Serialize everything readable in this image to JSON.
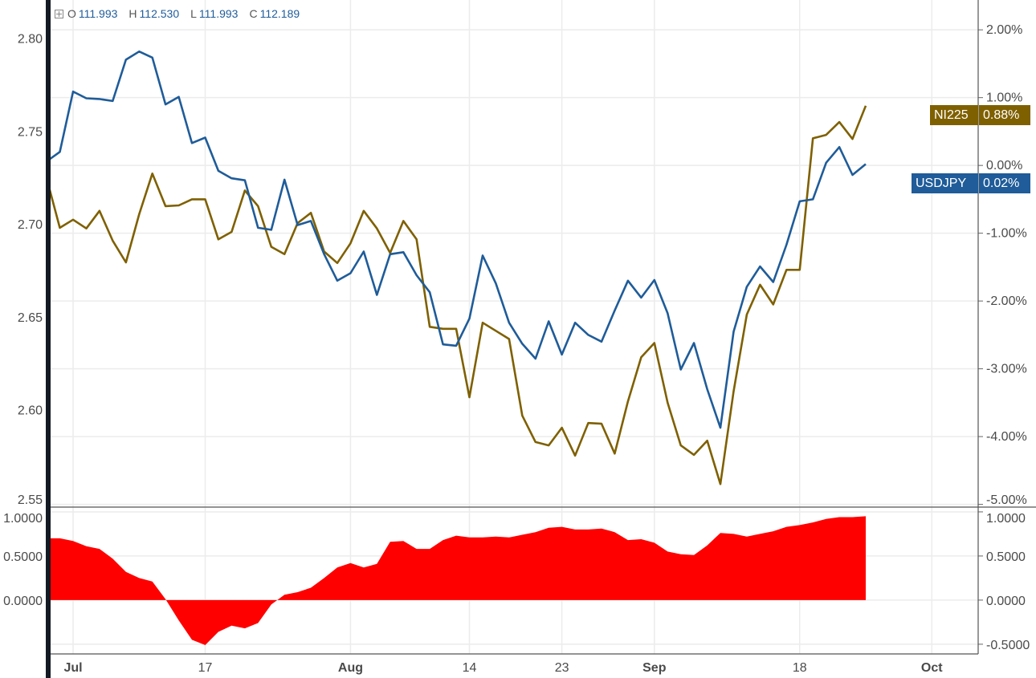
{
  "legend": {
    "open_label": "O",
    "open": "111.993",
    "high_label": "H",
    "high": "112.530",
    "low_label": "L",
    "low": "111.993",
    "close_label": "C",
    "close": "112.189",
    "expand_icon": "plus-square-icon"
  },
  "colors": {
    "usdjpy": "#1f5c99",
    "ni225": "#7f6000",
    "correlation": "#ff0000",
    "grid": "#ececec",
    "axis_text": "#4a4a4a"
  },
  "chart_data": [
    {
      "type": "line",
      "title": "",
      "x": [
        "Jun 29",
        "Jun 30",
        "Jul 3",
        "Jul 4",
        "Jul 5",
        "Jul 6",
        "Jul 7",
        "Jul 10",
        "Jul 11",
        "Jul 12",
        "Jul 13",
        "Jul 14",
        "Jul 17",
        "Jul 18",
        "Jul 19",
        "Jul 20",
        "Jul 21",
        "Jul 24",
        "Jul 25",
        "Jul 26",
        "Jul 27",
        "Jul 28",
        "Jul 31",
        "Aug 1",
        "Aug 2",
        "Aug 3",
        "Aug 4",
        "Aug 7",
        "Aug 8",
        "Aug 9",
        "Aug 10",
        "Aug 11",
        "Aug 14",
        "Aug 15",
        "Aug 16",
        "Aug 17",
        "Aug 18",
        "Aug 21",
        "Aug 22",
        "Aug 23",
        "Aug 24",
        "Aug 25",
        "Aug 28",
        "Aug 29",
        "Aug 30",
        "Aug 31",
        "Sep 1",
        "Sep 4",
        "Sep 5",
        "Sep 6",
        "Sep 7",
        "Sep 8",
        "Sep 11",
        "Sep 12",
        "Sep 13",
        "Sep 14",
        "Sep 15",
        "Sep 18",
        "Sep 19",
        "Sep 20",
        "Sep 21",
        "Sep 22",
        "Sep 25"
      ],
      "x_ticks": [
        "Jul",
        "17",
        "Aug",
        "14",
        "23",
        "Sep",
        "18",
        "Oct"
      ],
      "x_tick_dates": [
        "Jul 3",
        "Jul 17",
        "Aug 1",
        "Aug 14",
        "Aug 23",
        "Sep 1",
        "Sep 18",
        "Oct 2"
      ],
      "left_axis": {
        "ticks": [
          "2.80",
          "2.75",
          "2.70",
          "2.65",
          "2.60",
          "2.55"
        ],
        "values": [
          2.8,
          2.75,
          2.7,
          2.65,
          2.6,
          2.55
        ],
        "ylim": [
          2.548,
          2.821
        ]
      },
      "right_axis": {
        "ticks": [
          "2.00%",
          "1.00%",
          "0.00%",
          "-1.00%",
          "-2.00%",
          "-3.00%",
          "-4.00%",
          "-5.00%"
        ],
        "values": [
          2,
          1,
          0,
          -1,
          -2,
          -3,
          -4,
          -5
        ],
        "ylim": [
          -5.04,
          2.44
        ],
        "unit": "%"
      },
      "grid": true,
      "series": [
        {
          "name": "USDJPY",
          "last_label": "0.02%",
          "values": [
            0.06,
            0.2,
            1.09,
            0.99,
            0.98,
            0.95,
            1.56,
            1.68,
            1.59,
            0.9,
            1.01,
            0.33,
            0.41,
            -0.08,
            -0.19,
            -0.22,
            -0.92,
            -0.95,
            -0.21,
            -0.88,
            -0.82,
            -1.31,
            -1.7,
            -1.59,
            -1.27,
            -1.91,
            -1.31,
            -1.28,
            -1.62,
            -1.87,
            -2.64,
            -2.66,
            -2.26,
            -1.33,
            -1.74,
            -2.32,
            -2.63,
            -2.85,
            -2.3,
            -2.79,
            -2.32,
            -2.5,
            -2.6,
            -2.14,
            -1.7,
            -1.95,
            -1.69,
            -2.18,
            -3.01,
            -2.62,
            -3.3,
            -3.87,
            -2.45,
            -1.79,
            -1.49,
            -1.72,
            -1.17,
            -0.53,
            -0.5,
            0.04,
            0.27,
            -0.14,
            0.02
          ]
        },
        {
          "name": "NI225",
          "last_label": "0.88%",
          "values": [
            -0.19,
            -0.92,
            -0.8,
            -0.93,
            -0.67,
            -1.11,
            -1.43,
            -0.72,
            -0.12,
            -0.6,
            -0.59,
            -0.5,
            -0.5,
            -1.09,
            -0.98,
            -0.37,
            -0.6,
            -1.2,
            -1.31,
            -0.85,
            -0.7,
            -1.27,
            -1.44,
            -1.15,
            -0.67,
            -0.93,
            -1.29,
            -0.82,
            -1.09,
            -2.38,
            -2.41,
            -2.41,
            -3.42,
            -2.32,
            -2.44,
            -2.56,
            -3.69,
            -4.08,
            -4.13,
            -3.87,
            -4.28,
            -3.8,
            -3.81,
            -4.25,
            -3.48,
            -2.83,
            -2.62,
            -3.5,
            -4.13,
            -4.27,
            -4.06,
            -4.7,
            -3.33,
            -2.2,
            -1.76,
            -2.05,
            -1.54,
            -1.54,
            0.4,
            0.45,
            0.64,
            0.39,
            0.88
          ]
        }
      ]
    },
    {
      "type": "area",
      "title": "",
      "left_axis": {
        "ticks": [
          "1.0000",
          "0.5000",
          "0.0000"
        ],
        "values": [
          1,
          0.5,
          0
        ]
      },
      "right_axis": {
        "ticks": [
          "1.0000",
          "0.5000",
          "0.0000",
          "-0.5000"
        ],
        "values": [
          1,
          0.5,
          0,
          -0.5
        ]
      },
      "ylim": [
        -0.61,
        1.045
      ],
      "grid": true,
      "values": [
        0.7,
        0.7,
        0.67,
        0.61,
        0.58,
        0.47,
        0.32,
        0.25,
        0.21,
        0.01,
        -0.23,
        -0.45,
        -0.51,
        -0.36,
        -0.29,
        -0.32,
        -0.26,
        -0.05,
        0.06,
        0.09,
        0.14,
        0.25,
        0.37,
        0.42,
        0.37,
        0.41,
        0.66,
        0.67,
        0.58,
        0.58,
        0.68,
        0.73,
        0.71,
        0.71,
        0.72,
        0.71,
        0.74,
        0.77,
        0.82,
        0.83,
        0.8,
        0.8,
        0.81,
        0.77,
        0.68,
        0.69,
        0.65,
        0.55,
        0.52,
        0.51,
        0.62,
        0.76,
        0.75,
        0.72,
        0.75,
        0.78,
        0.83,
        0.85,
        0.88,
        0.92,
        0.94,
        0.94,
        0.95
      ]
    }
  ]
}
